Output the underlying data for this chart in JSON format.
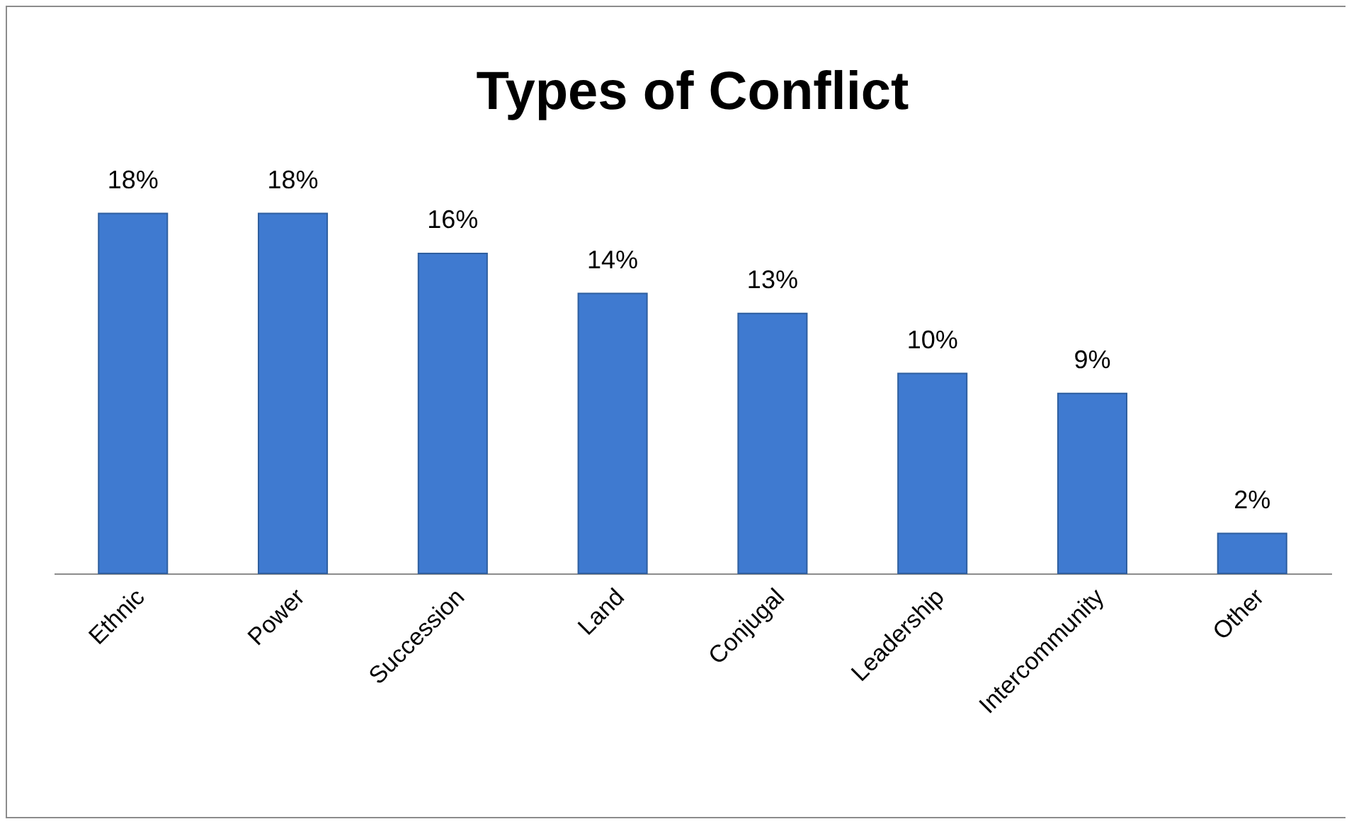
{
  "chart_data": {
    "type": "bar",
    "title": "Types of Conflict",
    "categories": [
      "Ethnic",
      "Power",
      "Succession",
      "Land",
      "Conjugal",
      "Leadership",
      "Intercommunity",
      "Other"
    ],
    "values": [
      18,
      18,
      16,
      14,
      13,
      10,
      9,
      2
    ],
    "value_labels": [
      "18%",
      "18%",
      "16%",
      "14%",
      "13%",
      "10%",
      "9%",
      "2%"
    ],
    "color": "#3f7ad0"
  }
}
